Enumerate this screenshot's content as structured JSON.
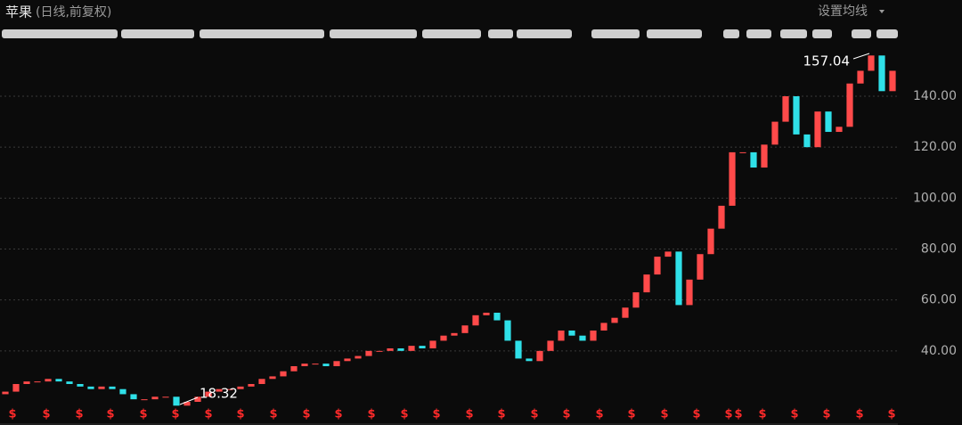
{
  "chart_data": {
    "type": "candlestick",
    "title": "苹果",
    "subtitle": "(日线,前复权)",
    "control": "设置均线",
    "annotations": {
      "high": "157.04",
      "low": "18.32"
    },
    "dividend_symbol": "$",
    "series": [
      {
        "up_color": "#ff4a4a",
        "down_color": "#2fe0e8",
        "open": [
          23,
          24,
          27,
          28,
          28,
          29,
          28,
          27,
          26,
          25,
          26,
          25,
          23,
          21,
          21,
          22,
          22,
          18.5,
          20,
          22,
          24,
          25,
          25,
          26,
          27,
          29,
          30,
          32,
          34,
          35,
          35,
          34,
          36,
          37,
          38,
          40,
          40,
          41,
          40,
          42,
          41,
          44,
          46,
          47,
          50,
          54,
          55,
          52,
          44,
          37,
          36,
          40,
          44,
          48,
          46,
          44,
          48,
          51,
          53,
          57,
          63,
          70,
          77,
          79,
          58,
          68,
          78,
          88,
          97,
          118,
          118,
          112,
          121,
          130,
          140,
          125,
          120,
          134,
          126,
          128,
          145,
          150,
          156,
          142
        ],
        "close": [
          24,
          27,
          28,
          28,
          29,
          28,
          27,
          26,
          25,
          26,
          25,
          23,
          21,
          21,
          22,
          22,
          18.5,
          20,
          22,
          24,
          25,
          25,
          26,
          27,
          29,
          30,
          32,
          34,
          35,
          35,
          34,
          36,
          37,
          38,
          40,
          40,
          41,
          40,
          42,
          41,
          44,
          46,
          47,
          50,
          54,
          55,
          52,
          44,
          37,
          36,
          40,
          44,
          48,
          46,
          44,
          48,
          51,
          53,
          57,
          63,
          70,
          77,
          79,
          58,
          68,
          78,
          88,
          97,
          118,
          118,
          112,
          121,
          130,
          140,
          125,
          120,
          134,
          126,
          128,
          145,
          150,
          156,
          142,
          150
        ]
      }
    ],
    "ylim": [
      20,
      161
    ],
    "yticks": [
      {
        "value": 40,
        "label": "40.00"
      },
      {
        "value": 60,
        "label": "60.00"
      },
      {
        "value": 80,
        "label": "80.00"
      },
      {
        "value": 100,
        "label": "100.00"
      },
      {
        "value": 120,
        "label": "120.00"
      },
      {
        "value": 140,
        "label": "140.00"
      }
    ],
    "grid": true
  }
}
